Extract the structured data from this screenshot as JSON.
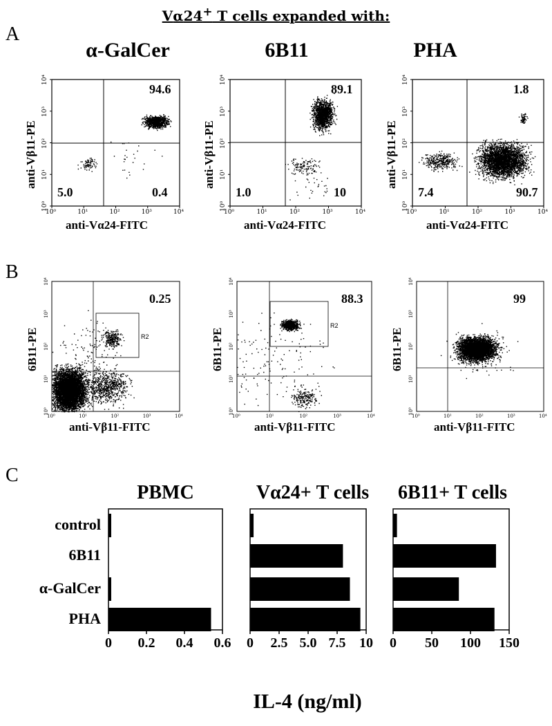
{
  "header": {
    "pre": "V",
    "alpha": "α",
    "num": "24",
    "sup": "+",
    "rest": " T cells expanded with:"
  },
  "panel_letters": [
    "A",
    "B",
    "C"
  ],
  "panelA": {
    "titles": [
      "α-GalCer",
      "6B11",
      "PHA"
    ],
    "xlabel": "anti-Vα24-FITC",
    "ylabel": "anti-Vβ11-PE",
    "ticks": [
      "10⁰",
      "10¹",
      "10²",
      "10³",
      "10⁴"
    ],
    "quadrants": [
      {
        "ur": "94.6",
        "ll": "5.0",
        "lr": "0.4"
      },
      {
        "ur": "89.1",
        "ll": "1.0",
        "lr": "10"
      },
      {
        "ur": "1.8",
        "ll": "7.4",
        "lr": "90.7"
      }
    ]
  },
  "panelB": {
    "xlabel": "anti-Vβ11-FITC",
    "ylabel": "6B11-PE",
    "gate": "R2",
    "values": [
      "0.25",
      "88.3",
      "99"
    ]
  },
  "chart_data": {
    "type": "bar",
    "categories": [
      "control",
      "6B11",
      "α-GalCer",
      "PHA"
    ],
    "xlabel": "IL-4 (ng/ml)",
    "panels": [
      {
        "title": "PBMC",
        "values": [
          0.01,
          0,
          0.005,
          0.54
        ],
        "xlim": [
          0,
          0.6
        ],
        "ticks": [
          "0",
          "0.2",
          "0.4",
          "0.6"
        ],
        "tickvals": [
          0,
          0.2,
          0.4,
          0.6
        ]
      },
      {
        "title": "Vα24+ T cells",
        "values": [
          0.3,
          8.0,
          8.6,
          9.5
        ],
        "xlim": [
          0,
          10
        ],
        "ticks": [
          "0",
          "2.5",
          "5.0",
          "7.5",
          "10"
        ],
        "tickvals": [
          0,
          2.5,
          5.0,
          7.5,
          10
        ]
      },
      {
        "title": "6B11+ T cells",
        "values": [
          5,
          133,
          85,
          131
        ],
        "xlim": [
          0,
          150
        ],
        "ticks": [
          "0",
          "50",
          "100",
          "150"
        ],
        "tickvals": [
          0,
          50,
          100,
          150
        ]
      }
    ]
  }
}
